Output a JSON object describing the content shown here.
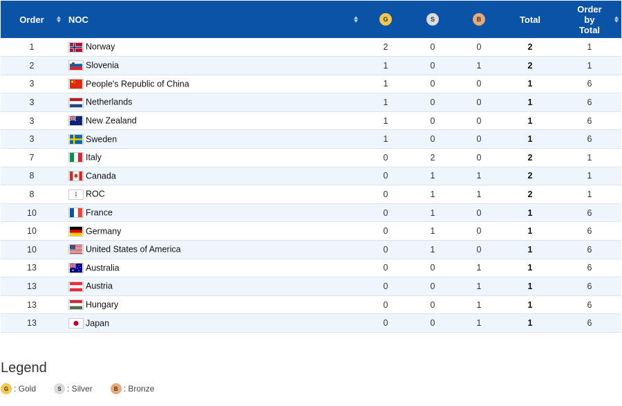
{
  "header": {
    "order": "Order",
    "noc": "NOC",
    "gold": "G",
    "silver": "S",
    "bronze": "B",
    "total": "Total",
    "order_by_total_lines": [
      "Order",
      "by",
      "Total"
    ]
  },
  "rows": [
    {
      "order": "1",
      "noc": "Norway",
      "flag": "NOR",
      "gold": "2",
      "silver": "0",
      "bronze": "0",
      "total": "2",
      "order_by_total": "1"
    },
    {
      "order": "2",
      "noc": "Slovenia",
      "flag": "SLO",
      "gold": "1",
      "silver": "0",
      "bronze": "1",
      "total": "2",
      "order_by_total": "1"
    },
    {
      "order": "3",
      "noc": "People's Republic of China",
      "flag": "CHN",
      "gold": "1",
      "silver": "0",
      "bronze": "0",
      "total": "1",
      "order_by_total": "6"
    },
    {
      "order": "3",
      "noc": "Netherlands",
      "flag": "NED",
      "gold": "1",
      "silver": "0",
      "bronze": "0",
      "total": "1",
      "order_by_total": "6"
    },
    {
      "order": "3",
      "noc": "New Zealand",
      "flag": "NZL",
      "gold": "1",
      "silver": "0",
      "bronze": "0",
      "total": "1",
      "order_by_total": "6"
    },
    {
      "order": "3",
      "noc": "Sweden",
      "flag": "SWE",
      "gold": "1",
      "silver": "0",
      "bronze": "0",
      "total": "1",
      "order_by_total": "6"
    },
    {
      "order": "7",
      "noc": "Italy",
      "flag": "ITA",
      "gold": "0",
      "silver": "2",
      "bronze": "0",
      "total": "2",
      "order_by_total": "1"
    },
    {
      "order": "8",
      "noc": "Canada",
      "flag": "CAN",
      "gold": "0",
      "silver": "1",
      "bronze": "1",
      "total": "2",
      "order_by_total": "1"
    },
    {
      "order": "8",
      "noc": "ROC",
      "flag": "ROC",
      "gold": "0",
      "silver": "1",
      "bronze": "1",
      "total": "2",
      "order_by_total": "1"
    },
    {
      "order": "10",
      "noc": "France",
      "flag": "FRA",
      "gold": "0",
      "silver": "1",
      "bronze": "0",
      "total": "1",
      "order_by_total": "6"
    },
    {
      "order": "10",
      "noc": "Germany",
      "flag": "GER",
      "gold": "0",
      "silver": "1",
      "bronze": "0",
      "total": "1",
      "order_by_total": "6"
    },
    {
      "order": "10",
      "noc": "United States of America",
      "flag": "USA",
      "gold": "0",
      "silver": "1",
      "bronze": "0",
      "total": "1",
      "order_by_total": "6"
    },
    {
      "order": "13",
      "noc": "Australia",
      "flag": "AUS",
      "gold": "0",
      "silver": "0",
      "bronze": "1",
      "total": "1",
      "order_by_total": "6"
    },
    {
      "order": "13",
      "noc": "Austria",
      "flag": "AUT",
      "gold": "0",
      "silver": "0",
      "bronze": "1",
      "total": "1",
      "order_by_total": "6"
    },
    {
      "order": "13",
      "noc": "Hungary",
      "flag": "HUN",
      "gold": "0",
      "silver": "0",
      "bronze": "1",
      "total": "1",
      "order_by_total": "6"
    },
    {
      "order": "13",
      "noc": "Japan",
      "flag": "JPN",
      "gold": "0",
      "silver": "0",
      "bronze": "1",
      "total": "1",
      "order_by_total": "6"
    }
  ],
  "legend": {
    "title": "Legend",
    "items": [
      {
        "badge": "G",
        "label": ": Gold",
        "color": "#f2c94c"
      },
      {
        "badge": "S",
        "label": ": Silver",
        "color": "#dcdcdc"
      },
      {
        "badge": "B",
        "label": ": Bronze",
        "color": "#e8a979"
      }
    ]
  },
  "colors": {
    "header_bg": "#0b53a6",
    "row_alt": "#eef5fc"
  }
}
